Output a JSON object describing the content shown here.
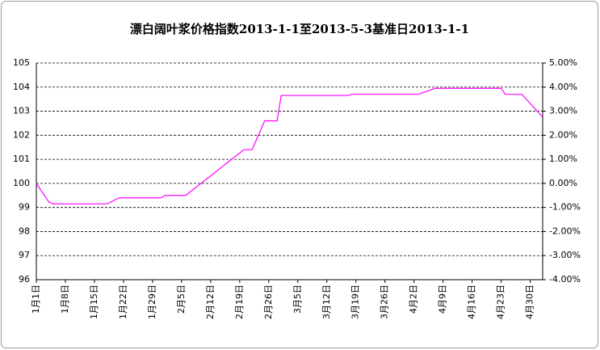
{
  "chart_data": {
    "type": "line",
    "title": "漂白阔叶浆价格指数2013-1-1至2013-5-3基准日2013-1-1",
    "categories": [
      "1月1日",
      null,
      null,
      null,
      null,
      null,
      null,
      "1月8日",
      null,
      null,
      null,
      null,
      null,
      null,
      "1月15日",
      null,
      null,
      null,
      null,
      null,
      null,
      "1月22日",
      null,
      null,
      null,
      null,
      null,
      null,
      "1月29日",
      null,
      null,
      null,
      null,
      null,
      null,
      "2月5日",
      null,
      null,
      null,
      null,
      null,
      null,
      "2月12日",
      null,
      null,
      null,
      null,
      null,
      null,
      "2月19日",
      null,
      null,
      null,
      null,
      null,
      null,
      "2月26日",
      null,
      null,
      null,
      null,
      null,
      null,
      "3月5日",
      null,
      null,
      null,
      null,
      null,
      null,
      "3月12日",
      null,
      null,
      null,
      null,
      null,
      null,
      "3月19日",
      null,
      null,
      null,
      null,
      null,
      null,
      "3月26日",
      null,
      null,
      null,
      null,
      null,
      null,
      "4月2日",
      null,
      null,
      null,
      null,
      null,
      null,
      "4月9日",
      null,
      null,
      null,
      null,
      null,
      null,
      "4月16日",
      null,
      null,
      null,
      null,
      null,
      null,
      "4月23日",
      null,
      null,
      null,
      null,
      null,
      null,
      "4月30日",
      null,
      null,
      null
    ],
    "series": [
      {
        "color": "#ff00ff",
        "values": [
          100,
          99.74,
          99.49,
          99.23,
          99.15,
          99.15,
          99.15,
          99.15,
          99.15,
          99.15,
          99.15,
          99.15,
          99.15,
          99.15,
          99.15,
          99.15,
          99.15,
          99.15,
          99.23,
          99.32,
          99.4,
          99.4,
          99.4,
          99.4,
          99.4,
          99.4,
          99.4,
          99.4,
          99.4,
          99.4,
          99.4,
          99.5,
          99.5,
          99.5,
          99.5,
          99.5,
          99.5,
          99.64,
          99.77,
          99.91,
          100.04,
          100.18,
          100.31,
          100.45,
          100.59,
          100.72,
          100.86,
          100.99,
          101.13,
          101.26,
          101.4,
          101.4,
          101.4,
          101.8,
          102.2,
          102.6,
          102.6,
          102.6,
          102.6,
          103.65,
          103.65,
          103.65,
          103.65,
          103.65,
          103.65,
          103.65,
          103.65,
          103.65,
          103.65,
          103.65,
          103.65,
          103.65,
          103.65,
          103.65,
          103.65,
          103.65,
          103.7,
          103.7,
          103.7,
          103.7,
          103.7,
          103.7,
          103.7,
          103.7,
          103.7,
          103.7,
          103.7,
          103.7,
          103.7,
          103.7,
          103.7,
          103.7,
          103.7,
          103.76,
          103.82,
          103.88,
          103.95,
          103.95,
          103.95,
          103.95,
          103.95,
          103.95,
          103.95,
          103.95,
          103.95,
          103.95,
          103.95,
          103.95,
          103.95,
          103.95,
          103.95,
          103.95,
          103.95,
          103.7,
          103.7,
          103.7,
          103.7,
          103.7,
          103.51,
          103.32,
          103.13,
          102.94,
          102.75
        ]
      }
    ],
    "ylim": [
      96,
      105
    ],
    "yticks": [
      96,
      97,
      98,
      99,
      100,
      101,
      102,
      103,
      104,
      105
    ],
    "y2lim": [
      -4,
      5
    ],
    "y2ticks": [
      {
        "value": -4,
        "label": "-4.00%"
      },
      {
        "value": -3,
        "label": "-3.00%"
      },
      {
        "value": -2,
        "label": "-2.00%"
      },
      {
        "value": -1,
        "label": "-1.00%"
      },
      {
        "value": 0,
        "label": "0.00%"
      },
      {
        "value": 1,
        "label": "1.00%"
      },
      {
        "value": 2,
        "label": "2.00%"
      },
      {
        "value": 3,
        "label": "3.00%"
      },
      {
        "value": 4,
        "label": "4.00%"
      },
      {
        "value": 5,
        "label": "5.00%"
      }
    ],
    "grid": true
  }
}
